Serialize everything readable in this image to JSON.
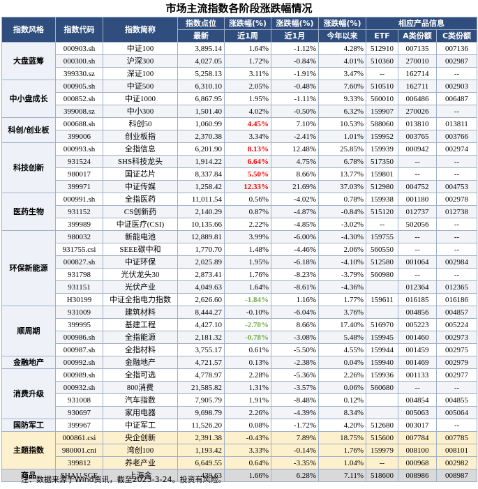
{
  "header": {
    "title": "市场主流指数各阶段涨跌幅情况",
    "columns": [
      "指数风格",
      "指数代码",
      "指数简称",
      "指数点位",
      "涨跌幅(%)",
      "涨跌幅(%)",
      "涨跌幅(%)",
      "相应产品信息"
    ],
    "subcolumns": [
      "最新",
      "近1周",
      "近1月",
      "今年以来",
      "ETF",
      "A类份额",
      "C类份额"
    ]
  },
  "table": {
    "groups": [
      {
        "name": "大盘蓝筹",
        "rows": [
          {
            "code": "000903.sh",
            "name": "中证100",
            "latest": "3,895.14",
            "week": "1.64%",
            "month": "-1.12%",
            "ytd": "4.28%",
            "etf": "512910",
            "a": "007135",
            "c": "007136"
          },
          {
            "code": "000300.sh",
            "name": "沪深300",
            "latest": "4,027.05",
            "week": "1.72%",
            "month": "-0.84%",
            "ytd": "4.01%",
            "etf": "510360",
            "a": "270010",
            "c": "002987"
          },
          {
            "code": "399330.sz",
            "name": "深证100",
            "latest": "5,258.13",
            "week": "3.11%",
            "month": "-1.91%",
            "ytd": "3.47%",
            "etf": "--",
            "a": "162714",
            "c": "--"
          }
        ]
      },
      {
        "name": "中小盘成长",
        "rows": [
          {
            "code": "000905.sh",
            "name": "中证500",
            "latest": "6,310.10",
            "week": "2.05%",
            "month": "-0.48%",
            "ytd": "7.60%",
            "etf": "510510",
            "a": "162711",
            "c": "002903"
          },
          {
            "code": "000852.sh",
            "name": "中证1000",
            "latest": "6,867.95",
            "week": "1.95%",
            "month": "-1.11%",
            "ytd": "9.33%",
            "etf": "560010",
            "a": "006486",
            "c": "006487"
          },
          {
            "code": "399008.sz",
            "name": "中小300",
            "latest": "1,501.40",
            "week": "4.02%",
            "month": "-0.50%",
            "ytd": "6.32%",
            "etf": "159907",
            "a": "270026",
            "c": "--"
          }
        ]
      },
      {
        "name": "科创/创业板",
        "rows": [
          {
            "code": "000688.sh",
            "name": "科创50",
            "latest": "1,060.99",
            "week": "4.45%",
            "month": "7.10%",
            "ytd": "10.53%",
            "etf": "588060",
            "a": "013810",
            "c": "013811",
            "highlight": "#ff0000"
          },
          {
            "code": "399006",
            "name": "创业板指",
            "latest": "2,370.38",
            "week": "3.34%",
            "month": "-2.41%",
            "ytd": "1.01%",
            "etf": "159952",
            "a": "003765",
            "c": "003766"
          }
        ]
      },
      {
        "name": "科技创新",
        "rows": [
          {
            "code": "000993.sh",
            "name": "全指信息",
            "latest": "6,201.90",
            "week": "8.13%",
            "month": "12.48%",
            "ytd": "25.85%",
            "etf": "159939",
            "a": "000942",
            "c": "002974",
            "highlight": "#ff0000"
          },
          {
            "code": "931524",
            "name": "SHS科技龙头",
            "latest": "1,914.22",
            "week": "6.64%",
            "month": "4.75%",
            "ytd": "6.78%",
            "etf": "517350",
            "a": "--",
            "c": "--",
            "highlight": "#ff0000"
          },
          {
            "code": "980017",
            "name": "国证芯片",
            "latest": "8,337.84",
            "week": "5.50%",
            "month": "8.66%",
            "ytd": "13.77%",
            "etf": "159801",
            "a": "--",
            "c": "--",
            "highlight": "#ff0000"
          },
          {
            "code": "399971",
            "name": "中证传媒",
            "latest": "1,258.42",
            "week": "12.33%",
            "month": "21.69%",
            "ytd": "37.03%",
            "etf": "512980",
            "a": "004752",
            "c": "004753",
            "highlight": "#ff0000"
          }
        ]
      },
      {
        "name": "医药生物",
        "rows": [
          {
            "code": "000991.sh",
            "name": "全指医药",
            "latest": "11,011.54",
            "week": "0.56%",
            "month": "-4.02%",
            "ytd": "0.78%",
            "etf": "159938",
            "a": "001180",
            "c": "002978"
          },
          {
            "code": "931152",
            "name": "CS创新药",
            "latest": "2,140.29",
            "week": "0.87%",
            "month": "-4.87%",
            "ytd": "-0.84%",
            "etf": "515120",
            "a": "012737",
            "c": "012738"
          },
          {
            "code": "399989",
            "name": "中证医疗(CSI)",
            "latest": "10,135.66",
            "week": "2.22%",
            "month": "-4.85%",
            "ytd": "-3.02%",
            "etf": "--",
            "a": "502056",
            "c": "--"
          }
        ]
      },
      {
        "name": "环保新能源",
        "rows": [
          {
            "code": "980032",
            "name": "新能电池",
            "latest": "12,889.81",
            "week": "3.99%",
            "month": "-6.00%",
            "ytd": "-4.30%",
            "etf": "159755",
            "a": "--",
            "c": "--"
          },
          {
            "code": "931755.csi",
            "name": "SEEE碳中和",
            "latest": "1,770.70",
            "week": "1.48%",
            "month": "-4.46%",
            "ytd": "2.06%",
            "etf": "560550",
            "a": "--",
            "c": "--"
          },
          {
            "code": "000827.sh",
            "name": "中证环保",
            "latest": "2,025.89",
            "week": "1.95%",
            "month": "-6.18%",
            "ytd": "-4.10%",
            "etf": "512580",
            "a": "001064",
            "c": "002984"
          },
          {
            "code": "931798",
            "name": "光伏龙头30",
            "latest": "2,873.41",
            "week": "1.76%",
            "month": "-8.23%",
            "ytd": "-3.79%",
            "etf": "560980",
            "a": "--",
            "c": "--"
          },
          {
            "code": "931151",
            "name": "光伏产业",
            "latest": "4,049.63",
            "week": "1.64%",
            "month": "-8.61%",
            "ytd": "-4.36%",
            "etf": null,
            "a": "012364",
            "c": "012365"
          },
          {
            "code": "H30199",
            "name": "中证全指电力指数",
            "latest": "2,626.60",
            "week": "-1.84%",
            "month": "1.16%",
            "ytd": "1.77%",
            "etf": "159611",
            "a": "016185",
            "c": "016186",
            "highlight": "#70ad47"
          }
        ]
      },
      {
        "name": "顺周期",
        "rows": [
          {
            "code": "931009",
            "name": "建筑材料",
            "latest": "8,444.27",
            "week": "-0.10%",
            "month": "-6.04%",
            "ytd": "3.76%",
            "etf": null,
            "a": "004856",
            "c": "004857"
          },
          {
            "code": "399995",
            "name": "基建工程",
            "latest": "4,427.10",
            "week": "-2.70%",
            "month": "8.66%",
            "ytd": "17.40%",
            "etf": "516970",
            "a": "005223",
            "c": "005224",
            "highlight": "#70ad47"
          },
          {
            "code": "000986.sh",
            "name": "全指能源",
            "latest": "2,181.32",
            "week": "-0.78%",
            "month": "-3.08%",
            "ytd": "5.48%",
            "etf": "159945",
            "a": "001460",
            "c": "002973",
            "highlight": "#70ad47"
          },
          {
            "code": "000987.sh",
            "name": "全指材料",
            "latest": "3,755.17",
            "week": "0.61%",
            "month": "-5.50%",
            "ytd": "4.55%",
            "etf": "159944",
            "a": "001459",
            "c": "002975"
          }
        ]
      },
      {
        "name": "金融地产",
        "rows": [
          {
            "code": "000992.sh",
            "name": "金融地产",
            "latest": "4,721.57",
            "week": "0.13%",
            "month": "-2.38%",
            "ytd": "0.04%",
            "etf": "159940",
            "a": "001469",
            "c": "002979"
          }
        ]
      },
      {
        "name": "消费升级",
        "rows": [
          {
            "code": "000989.sh",
            "name": "全指可选",
            "latest": "4,778.97",
            "week": "2.28%",
            "month": "-5.36%",
            "ytd": "2.26%",
            "etf": "159936",
            "a": "001133",
            "c": "002977"
          },
          {
            "code": "000932.sh",
            "name": "800消费",
            "latest": "21,585.82",
            "week": "1.31%",
            "month": "-3.57%",
            "ytd": "0.06%",
            "etf": "560680",
            "a": "--",
            "c": "--"
          },
          {
            "code": "931008",
            "name": "汽车指数",
            "latest": "7,905.79",
            "week": "1.91%",
            "month": "-8.48%",
            "ytd": "0.12%",
            "etf": null,
            "a": "004854",
            "c": "004855"
          },
          {
            "code": "930697",
            "name": "家用电器",
            "latest": "9,698.79",
            "week": "2.26%",
            "month": "-4.39%",
            "ytd": "8.34%",
            "etf": null,
            "a": "005063",
            "c": "005064"
          }
        ]
      },
      {
        "name": "国防军工",
        "rows": [
          {
            "code": "399967",
            "name": "中证军工",
            "latest": "11,526.20",
            "week": "0.08%",
            "month": "-1.72%",
            "ytd": "4.20%",
            "etf": "512680",
            "a": "003017",
            "c": "--"
          }
        ]
      },
      {
        "name": "主题指数",
        "color": "#fdf0cc",
        "rows": [
          {
            "code": "000861.csi",
            "name": "央企创新",
            "latest": "2,391.38",
            "week": "-0.43%",
            "month": "7.89%",
            "ytd": "18.75%",
            "etf": "515600",
            "a": "007784",
            "c": "007785"
          },
          {
            "code": "980001.cni",
            "name": "湾创100",
            "latest": "1,193.42",
            "week": "3.33%",
            "month": "-0.14%",
            "ytd": "1.76%",
            "etf": "159979",
            "a": "008100",
            "c": "008101"
          },
          {
            "code": "399812",
            "name": "养老产业",
            "latest": "6,649.55",
            "week": "0.64%",
            "month": "-3.35%",
            "ytd": "1.04%",
            "etf": "--",
            "a": "000968",
            "c": "002982"
          }
        ]
      },
      {
        "name": "商品",
        "color": "#d9d9d9",
        "rows": [
          {
            "code": "SHAU.SGE",
            "name": "上海金",
            "latest": "439.63",
            "week": "1.66%",
            "month": "6.28%",
            "ytd": "7.11%",
            "etf": "518600",
            "a": "008986",
            "c": "008987"
          }
        ]
      }
    ]
  },
  "footnote": "注：数据来源于Wind资讯，截至2023-3-24。投资有风险。"
}
